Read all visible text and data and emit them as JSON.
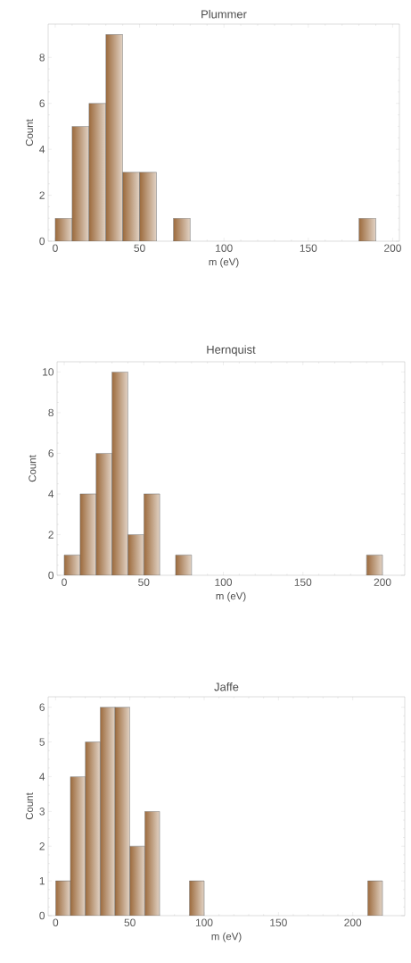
{
  "chart_data": [
    {
      "type": "histogram",
      "title": "Plummer",
      "xlabel": "m (eV)",
      "ylabel": "Count",
      "color": "#9c6a3c",
      "bins": [
        0,
        10,
        20,
        30,
        40,
        50,
        60,
        70,
        80,
        90,
        100,
        110,
        120,
        130,
        140,
        150,
        160,
        170,
        180,
        190
      ],
      "values": [
        1,
        5,
        6,
        9,
        3,
        3,
        0,
        1,
        0,
        0,
        0,
        0,
        0,
        0,
        0,
        0,
        0,
        0,
        1
      ],
      "xlim": [
        -4.2,
        204
      ],
      "ylim": [
        0,
        9.45
      ],
      "xticks": [
        0,
        50,
        100,
        150,
        200
      ],
      "yticks": [
        0,
        2,
        4,
        6,
        8
      ]
    },
    {
      "type": "histogram",
      "title": "Hernquist",
      "xlabel": "m (eV)",
      "ylabel": "Count",
      "color": "#9c6a3c",
      "bins": [
        0,
        10,
        20,
        30,
        40,
        50,
        60,
        70,
        80,
        90,
        100,
        110,
        120,
        130,
        140,
        150,
        160,
        170,
        180,
        190,
        200
      ],
      "values": [
        1,
        4,
        6,
        10,
        2,
        4,
        0,
        1,
        0,
        0,
        0,
        0,
        0,
        0,
        0,
        0,
        0,
        0,
        0,
        1
      ],
      "xlim": [
        -4.5,
        214
      ],
      "ylim": [
        0,
        10.5
      ],
      "xticks": [
        0,
        50,
        100,
        150,
        200
      ],
      "yticks": [
        0,
        2,
        4,
        6,
        8,
        10
      ]
    },
    {
      "type": "histogram",
      "title": "Jaffe",
      "xlabel": "m (eV)",
      "ylabel": "Count",
      "color": "#9c6a3c",
      "bins": [
        0,
        10,
        20,
        30,
        40,
        50,
        60,
        70,
        80,
        90,
        100,
        110,
        120,
        130,
        140,
        150,
        160,
        170,
        180,
        190,
        200,
        210,
        220
      ],
      "values": [
        1,
        4,
        5,
        6,
        6,
        2,
        3,
        0,
        0,
        1,
        0,
        0,
        0,
        0,
        0,
        0,
        0,
        0,
        0,
        0,
        0,
        1
      ],
      "xlim": [
        -5,
        235
      ],
      "ylim": [
        0,
        6.3
      ],
      "xticks": [
        0,
        50,
        100,
        150,
        200
      ],
      "yticks": [
        0,
        1,
        2,
        3,
        4,
        5,
        6
      ]
    }
  ]
}
